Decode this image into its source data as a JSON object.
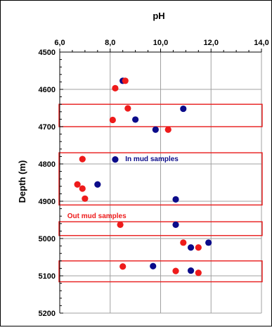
{
  "chart_data": {
    "type": "scatter",
    "title": "pH",
    "xlabel": "pH",
    "ylabel": "Depth (m)",
    "xlim": [
      6.0,
      14.0
    ],
    "ylim": [
      4500,
      5200
    ],
    "y_inverted": true,
    "x_axis_position": "top",
    "x_ticks": [
      "6,0",
      "8,0",
      "10,0",
      "12,0",
      "14,0"
    ],
    "y_ticks": [
      "4500",
      "4600",
      "4700",
      "4800",
      "4900",
      "5000",
      "5100",
      "5200"
    ],
    "grid": true,
    "series": [
      {
        "name": "In mud samples",
        "color": "#0b0b8a",
        "points": [
          {
            "x": 8.5,
            "y": 4577
          },
          {
            "x": 10.9,
            "y": 4652
          },
          {
            "x": 9.0,
            "y": 4681
          },
          {
            "x": 9.8,
            "y": 4708
          },
          {
            "x": 8.2,
            "y": 4788
          },
          {
            "x": 7.5,
            "y": 4855
          },
          {
            "x": 10.6,
            "y": 4895
          },
          {
            "x": 10.6,
            "y": 4963
          },
          {
            "x": 11.9,
            "y": 5011
          },
          {
            "x": 11.2,
            "y": 5024
          },
          {
            "x": 9.7,
            "y": 5074
          },
          {
            "x": 11.2,
            "y": 5086
          }
        ]
      },
      {
        "name": "Out mud samples",
        "color": "#ee1b1b",
        "points": [
          {
            "x": 8.6,
            "y": 4577
          },
          {
            "x": 8.2,
            "y": 4597
          },
          {
            "x": 8.7,
            "y": 4651
          },
          {
            "x": 8.1,
            "y": 4682
          },
          {
            "x": 10.3,
            "y": 4708
          },
          {
            "x": 6.9,
            "y": 4787
          },
          {
            "x": 6.7,
            "y": 4855
          },
          {
            "x": 6.9,
            "y": 4866
          },
          {
            "x": 7.0,
            "y": 4893
          },
          {
            "x": 8.4,
            "y": 4963
          },
          {
            "x": 10.9,
            "y": 5011
          },
          {
            "x": 11.5,
            "y": 5024
          },
          {
            "x": 8.5,
            "y": 5075
          },
          {
            "x": 10.6,
            "y": 5087
          },
          {
            "x": 11.5,
            "y": 5092
          }
        ]
      }
    ],
    "depth_bands": [
      {
        "top": 4640,
        "bottom": 4700
      },
      {
        "top": 4770,
        "bottom": 4910
      },
      {
        "top": 4955,
        "bottom": 4992
      },
      {
        "top": 5060,
        "bottom": 5116
      }
    ],
    "band_color": "#e81b1b",
    "annotations": [
      {
        "text": "In mud samples",
        "x": 8.6,
        "y": 4792,
        "color": "#0b0b8a"
      },
      {
        "text": "Out mud samples",
        "x": 6.3,
        "y": 4945,
        "color": "#ee1b1b"
      }
    ]
  }
}
